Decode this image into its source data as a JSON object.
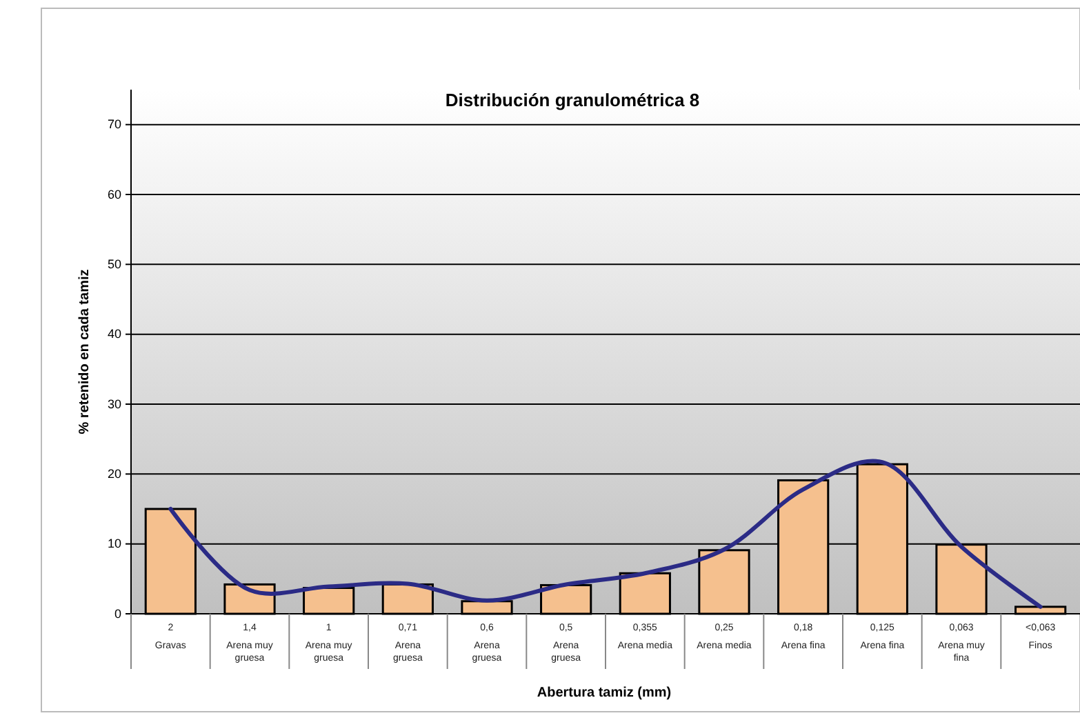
{
  "chart_data": {
    "type": "bar",
    "title": "Distribución granulométrica 8",
    "xlabel": "Abertura tamiz (mm)",
    "ylabel": "% retenido en cada tamiz",
    "categories": [
      "2\nGravas",
      "1,4\nArena muy gruesa",
      "1\nArena muy gruesa",
      "0,71\nArena gruesa",
      "0,6\nArena gruesa",
      "0,5\nArena gruesa",
      "0,355\nArena media",
      "0,25\nArena media",
      "0,18\nArena fina",
      "0,125\nArena fina",
      "0,063\nArena muy fina",
      "<0,063\nFinos"
    ],
    "series": [
      {
        "color": "#f5c08e",
        "values": [
          15,
          4.2,
          3.7,
          4.2,
          1.8,
          4.1,
          5.8,
          9.1,
          19.1,
          21.4,
          9.9,
          1.0
        ]
      },
      {
        "type": "line",
        "color": "#2b2b86",
        "values": [
          15,
          3.4,
          3.9,
          4.3,
          1.9,
          4.2,
          5.8,
          9.2,
          17.8,
          21.7,
          9.6,
          1.0
        ]
      }
    ],
    "ylim": [
      0,
      75
    ],
    "yticks": [
      0,
      10,
      20,
      30,
      40,
      50,
      60,
      70
    ],
    "grid": "y",
    "marker": "none",
    "line_style": "solid"
  }
}
